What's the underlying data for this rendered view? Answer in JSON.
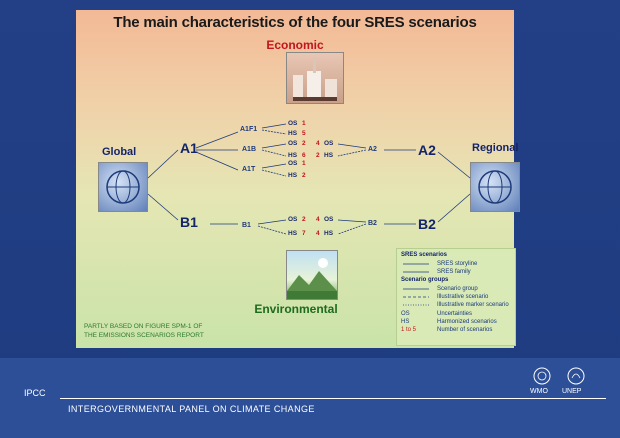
{
  "title": "The main characteristics of the four SRES scenarios",
  "axes": {
    "top": "Economic",
    "bottom": "Environmental",
    "left": "Global",
    "right": "Regional"
  },
  "families": {
    "a1": "A1",
    "a2": "A2",
    "b1": "B1",
    "b2": "B2"
  },
  "groups": {
    "a1f1": "A1F1",
    "a1b": "A1B",
    "a1t": "A1T",
    "a2_small": "A2",
    "b1_small": "B1",
    "b2_small": "B2"
  },
  "counts": {
    "a1f1": [
      {
        "label": "OS",
        "num": "1"
      },
      {
        "label": "HS",
        "num": "5"
      }
    ],
    "a1b": [
      {
        "label": "OS",
        "num": "2"
      },
      {
        "label": "HS",
        "num": "6"
      }
    ],
    "a1t": [
      {
        "label": "OS",
        "num": "1"
      },
      {
        "label": "HS",
        "num": "2"
      }
    ],
    "a2": [
      {
        "label": "OS",
        "num": "4"
      },
      {
        "label": "HS",
        "num": "2"
      }
    ],
    "b1": [
      {
        "label": "OS",
        "num": "2"
      },
      {
        "label": "HS",
        "num": "7"
      }
    ],
    "b2": [
      {
        "label": "OS",
        "num": "4"
      },
      {
        "label": "HS",
        "num": "4"
      }
    ]
  },
  "legend": {
    "h1": "SRES scenarios",
    "storyline": "SRES storyline",
    "family": "SRES family",
    "h2": "Scenario groups",
    "group": "Scenario group",
    "illustrative": "Illustrative scenario",
    "marker": "Illustrative marker scenario",
    "os_abbr": "OS",
    "os": "Uncertainties",
    "hs_abbr": "HS",
    "hs": "Harmonized scenarios",
    "num_abbr": "1 to 5",
    "num": "Number of scenarios"
  },
  "credit": {
    "line1": "PARTLY BASED ON FIGURE SPM-1 OF",
    "line2": "THE EMISSIONS SCENARIOS REPORT"
  },
  "footer": {
    "ipcc": "IPCC",
    "full": "INTERGOVERNMENTAL PANEL ON CLIMATE CHANGE",
    "wmo": "WMO",
    "unep": "UNEP"
  },
  "colors": {
    "accent_red": "#c0161c",
    "navy": "#14246a",
    "env_green": "#1d6b1d"
  }
}
